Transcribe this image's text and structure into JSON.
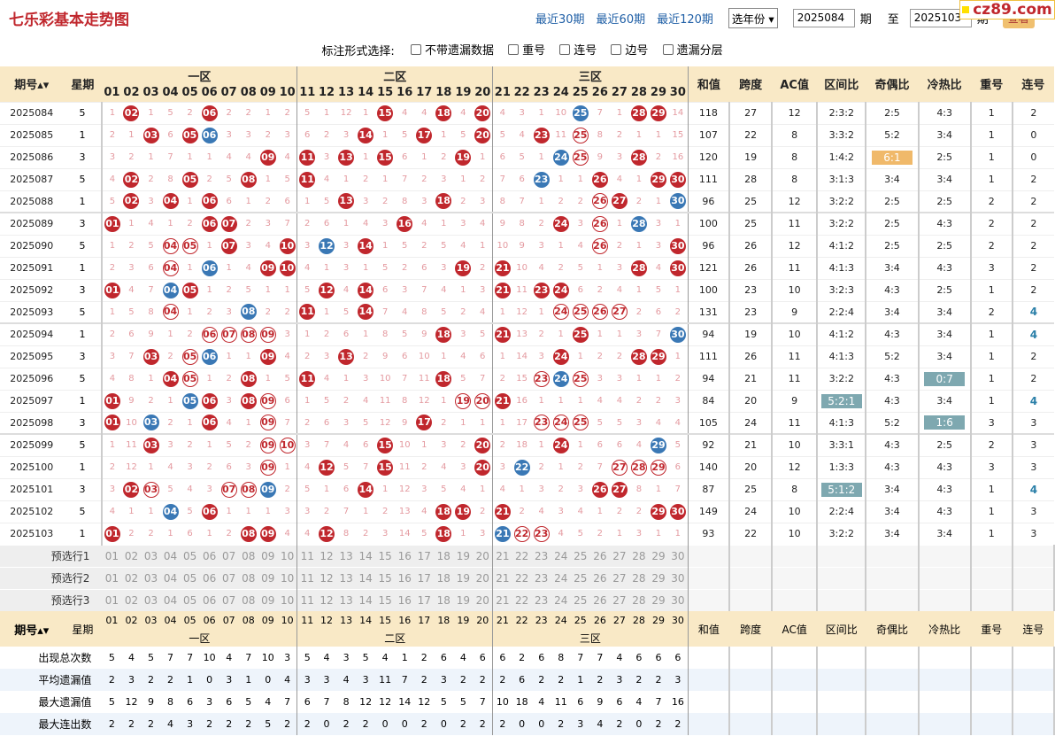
{
  "header": {
    "title": "七乐彩基本走势图",
    "links": [
      "最近30期",
      "最近60期",
      "最近120期"
    ],
    "year_select": "选年份",
    "from_issue": "2025084",
    "unit": "期",
    "to_label": "至",
    "to_issue": "2025103",
    "query": "查看",
    "watermark": "cz89.com"
  },
  "options": {
    "label": "标注形式选择:",
    "items": [
      "不带遗漏数据",
      "重号",
      "连号",
      "边号",
      "遗漏分层"
    ]
  },
  "columns": {
    "issue": "期号",
    "week": "星期",
    "zones": [
      "一区",
      "二区",
      "三区"
    ],
    "stats": [
      "和值",
      "跨度",
      "AC值",
      "区间比",
      "奇偶比",
      "冷热比",
      "重号",
      "连号"
    ],
    "numbers": [
      "01",
      "02",
      "03",
      "04",
      "05",
      "06",
      "07",
      "08",
      "09",
      "10",
      "11",
      "12",
      "13",
      "14",
      "15",
      "16",
      "17",
      "18",
      "19",
      "20",
      "21",
      "22",
      "23",
      "24",
      "25",
      "26",
      "27",
      "28",
      "29",
      "30"
    ]
  },
  "rows": [
    {
      "issue": "2025084",
      "week": "5",
      "cells": [
        "1",
        "02",
        "1",
        "5",
        "2",
        "06",
        "2",
        "2",
        "1",
        "2",
        "5",
        "1",
        "12",
        "1",
        "15",
        "4",
        "4",
        "18",
        "4",
        "20",
        "4",
        "3",
        "1",
        "10",
        "25",
        "7",
        "1",
        "28",
        "29",
        "14"
      ],
      "sum": "118",
      "span": "27",
      "ac": "12",
      "zone": "2:3:2",
      "oe": "2:5",
      "ch": "4:3",
      "rep": "1",
      "con": "2"
    },
    {
      "issue": "2025085",
      "week": "1",
      "cells": [
        "2",
        "1",
        "03",
        "6",
        "05",
        "06",
        "3",
        "3",
        "2",
        "3",
        "6",
        "2",
        "3",
        "14",
        "1",
        "5",
        "17",
        "1",
        "5",
        "20",
        "5",
        "4",
        "23",
        "11",
        "25",
        "8",
        "2",
        "1",
        "1",
        "15"
      ],
      "sum": "107",
      "span": "22",
      "ac": "8",
      "zone": "3:3:2",
      "oe": "5:2",
      "ch": "3:4",
      "rep": "1",
      "con": "0"
    },
    {
      "issue": "2025086",
      "week": "3",
      "cells": [
        "3",
        "2",
        "1",
        "7",
        "1",
        "1",
        "4",
        "4",
        "09",
        "4",
        "11",
        "3",
        "13",
        "1",
        "15",
        "6",
        "1",
        "2",
        "19",
        "1",
        "6",
        "5",
        "1",
        "24",
        "25",
        "9",
        "3",
        "28",
        "2",
        "16"
      ],
      "sum": "120",
      "span": "19",
      "ac": "8",
      "zone": "1:4:2",
      "oe": "6:1",
      "ch": "2:5",
      "rep": "1",
      "con": "0"
    },
    {
      "issue": "2025087",
      "week": "5",
      "cells": [
        "4",
        "02",
        "2",
        "8",
        "05",
        "2",
        "5",
        "08",
        "1",
        "5",
        "11",
        "4",
        "1",
        "2",
        "1",
        "7",
        "2",
        "3",
        "1",
        "2",
        "7",
        "6",
        "23",
        "1",
        "1",
        "26",
        "4",
        "1",
        "29",
        "30"
      ],
      "sum": "111",
      "span": "28",
      "ac": "8",
      "zone": "3:1:3",
      "oe": "3:4",
      "ch": "3:4",
      "rep": "1",
      "con": "2"
    },
    {
      "issue": "2025088",
      "week": "1",
      "cells": [
        "5",
        "02",
        "3",
        "04",
        "1",
        "06",
        "6",
        "1",
        "2",
        "6",
        "1",
        "5",
        "13",
        "3",
        "2",
        "8",
        "3",
        "18",
        "2",
        "3",
        "8",
        "7",
        "1",
        "2",
        "2",
        "26",
        "27",
        "2",
        "1",
        "30"
      ],
      "sum": "96",
      "span": "25",
      "ac": "12",
      "zone": "3:2:2",
      "oe": "2:5",
      "ch": "2:5",
      "rep": "2",
      "con": "2"
    },
    {
      "issue": "2025089",
      "week": "3",
      "cells": [
        "01",
        "1",
        "4",
        "1",
        "2",
        "06",
        "07",
        "2",
        "3",
        "7",
        "2",
        "6",
        "1",
        "4",
        "3",
        "16",
        "4",
        "1",
        "3",
        "4",
        "9",
        "8",
        "2",
        "24",
        "3",
        "26",
        "1",
        "28",
        "3",
        "1"
      ],
      "sum": "100",
      "span": "25",
      "ac": "11",
      "zone": "3:2:2",
      "oe": "2:5",
      "ch": "4:3",
      "rep": "2",
      "con": "2"
    },
    {
      "issue": "2025090",
      "week": "5",
      "cells": [
        "1",
        "2",
        "5",
        "04",
        "05",
        "1",
        "07",
        "3",
        "4",
        "10",
        "3",
        "12",
        "3",
        "14",
        "1",
        "5",
        "2",
        "5",
        "4",
        "1",
        "10",
        "9",
        "3",
        "1",
        "4",
        "26",
        "2",
        "1",
        "3",
        "30"
      ],
      "sum": "96",
      "span": "26",
      "ac": "12",
      "zone": "4:1:2",
      "oe": "2:5",
      "ch": "2:5",
      "rep": "2",
      "con": "2"
    },
    {
      "issue": "2025091",
      "week": "1",
      "cells": [
        "2",
        "3",
        "6",
        "04",
        "1",
        "06",
        "1",
        "4",
        "09",
        "10",
        "4",
        "1",
        "3",
        "1",
        "5",
        "2",
        "6",
        "3",
        "19",
        "2",
        "21",
        "10",
        "4",
        "2",
        "5",
        "1",
        "3",
        "28",
        "4",
        "30"
      ],
      "sum": "121",
      "span": "26",
      "ac": "11",
      "zone": "4:1:3",
      "oe": "3:4",
      "ch": "4:3",
      "rep": "3",
      "con": "2"
    },
    {
      "issue": "2025092",
      "week": "3",
      "cells": [
        "01",
        "4",
        "7",
        "04",
        "05",
        "1",
        "2",
        "5",
        "1",
        "1",
        "5",
        "12",
        "4",
        "14",
        "6",
        "3",
        "7",
        "4",
        "1",
        "3",
        "21",
        "11",
        "23",
        "24",
        "6",
        "2",
        "4",
        "1",
        "5",
        "1"
      ],
      "sum": "100",
      "span": "23",
      "ac": "10",
      "zone": "3:2:3",
      "oe": "4:3",
      "ch": "2:5",
      "rep": "1",
      "con": "2"
    },
    {
      "issue": "2025093",
      "week": "5",
      "cells": [
        "1",
        "5",
        "8",
        "04",
        "1",
        "2",
        "3",
        "08",
        "2",
        "2",
        "11",
        "1",
        "5",
        "14",
        "7",
        "4",
        "8",
        "5",
        "2",
        "4",
        "1",
        "12",
        "1",
        "24",
        "25",
        "26",
        "27",
        "2",
        "6",
        "2"
      ],
      "sum": "131",
      "span": "23",
      "ac": "9",
      "zone": "2:2:4",
      "oe": "3:4",
      "ch": "3:4",
      "rep": "2",
      "con": "4"
    },
    {
      "issue": "2025094",
      "week": "1",
      "cells": [
        "2",
        "6",
        "9",
        "1",
        "2",
        "06",
        "07",
        "08",
        "09",
        "3",
        "1",
        "2",
        "6",
        "1",
        "8",
        "5",
        "9",
        "18",
        "3",
        "5",
        "21",
        "13",
        "2",
        "1",
        "25",
        "1",
        "1",
        "3",
        "7",
        "30"
      ],
      "sum": "94",
      "span": "19",
      "ac": "10",
      "zone": "4:1:2",
      "oe": "4:3",
      "ch": "3:4",
      "rep": "1",
      "con": "4"
    },
    {
      "issue": "2025095",
      "week": "3",
      "cells": [
        "3",
        "7",
        "03",
        "2",
        "05",
        "06",
        "1",
        "1",
        "09",
        "4",
        "2",
        "3",
        "13",
        "2",
        "9",
        "6",
        "10",
        "1",
        "4",
        "6",
        "1",
        "14",
        "3",
        "24",
        "1",
        "2",
        "2",
        "28",
        "29",
        "1"
      ],
      "sum": "111",
      "span": "26",
      "ac": "11",
      "zone": "4:1:3",
      "oe": "5:2",
      "ch": "3:4",
      "rep": "1",
      "con": "2"
    },
    {
      "issue": "2025096",
      "week": "5",
      "cells": [
        "4",
        "8",
        "1",
        "04",
        "05",
        "1",
        "2",
        "08",
        "1",
        "5",
        "11",
        "4",
        "1",
        "3",
        "10",
        "7",
        "11",
        "18",
        "5",
        "7",
        "2",
        "15",
        "23",
        "24",
        "25",
        "3",
        "3",
        "1",
        "1",
        "2"
      ],
      "sum": "94",
      "span": "21",
      "ac": "11",
      "zone": "3:2:2",
      "oe": "4:3",
      "ch": "0:7",
      "rep": "1",
      "con": "2"
    },
    {
      "issue": "2025097",
      "week": "1",
      "cells": [
        "01",
        "9",
        "2",
        "1",
        "05",
        "06",
        "3",
        "08",
        "09",
        "6",
        "1",
        "5",
        "2",
        "4",
        "11",
        "8",
        "12",
        "1",
        "19",
        "20",
        "21",
        "16",
        "1",
        "1",
        "1",
        "4",
        "4",
        "2",
        "2",
        "3"
      ],
      "sum": "84",
      "span": "20",
      "ac": "9",
      "zone": "5:2:1",
      "oe": "4:3",
      "ch": "3:4",
      "rep": "1",
      "con": "4"
    },
    {
      "issue": "2025098",
      "week": "3",
      "cells": [
        "01",
        "10",
        "03",
        "2",
        "1",
        "06",
        "4",
        "1",
        "09",
        "7",
        "2",
        "6",
        "3",
        "5",
        "12",
        "9",
        "17",
        "2",
        "1",
        "1",
        "1",
        "17",
        "23",
        "24",
        "25",
        "5",
        "5",
        "3",
        "4",
        "4"
      ],
      "sum": "105",
      "span": "24",
      "ac": "11",
      "zone": "4:1:3",
      "oe": "5:2",
      "ch": "1:6",
      "rep": "3",
      "con": "3"
    },
    {
      "issue": "2025099",
      "week": "5",
      "cells": [
        "1",
        "11",
        "03",
        "3",
        "2",
        "1",
        "5",
        "2",
        "09",
        "10",
        "3",
        "7",
        "4",
        "6",
        "15",
        "10",
        "1",
        "3",
        "2",
        "20",
        "2",
        "18",
        "1",
        "24",
        "1",
        "6",
        "6",
        "4",
        "29",
        "5"
      ],
      "sum": "92",
      "span": "21",
      "ac": "10",
      "zone": "3:3:1",
      "oe": "4:3",
      "ch": "2:5",
      "rep": "2",
      "con": "3"
    },
    {
      "issue": "2025100",
      "week": "1",
      "cells": [
        "2",
        "12",
        "1",
        "4",
        "3",
        "2",
        "6",
        "3",
        "09",
        "1",
        "4",
        "12",
        "5",
        "7",
        "15",
        "11",
        "2",
        "4",
        "3",
        "20",
        "3",
        "22",
        "2",
        "1",
        "2",
        "7",
        "27",
        "28",
        "29",
        "6"
      ],
      "sum": "140",
      "span": "20",
      "ac": "12",
      "zone": "1:3:3",
      "oe": "4:3",
      "ch": "4:3",
      "rep": "3",
      "con": "3"
    },
    {
      "issue": "2025101",
      "week": "3",
      "cells": [
        "3",
        "02",
        "03",
        "5",
        "4",
        "3",
        "07",
        "08",
        "09",
        "2",
        "5",
        "1",
        "6",
        "14",
        "1",
        "12",
        "3",
        "5",
        "4",
        "1",
        "4",
        "1",
        "3",
        "2",
        "3",
        "26",
        "27",
        "8",
        "1",
        "7"
      ],
      "sum": "87",
      "span": "25",
      "ac": "8",
      "zone": "5:1:2",
      "oe": "3:4",
      "ch": "4:3",
      "rep": "1",
      "con": "4"
    },
    {
      "issue": "2025102",
      "week": "5",
      "cells": [
        "4",
        "1",
        "1",
        "04",
        "5",
        "06",
        "1",
        "1",
        "1",
        "3",
        "3",
        "2",
        "7",
        "1",
        "2",
        "13",
        "4",
        "18",
        "19",
        "2",
        "21",
        "2",
        "4",
        "3",
        "4",
        "1",
        "2",
        "2",
        "29",
        "30"
      ],
      "sum": "149",
      "span": "24",
      "ac": "10",
      "zone": "2:2:4",
      "oe": "3:4",
      "ch": "4:3",
      "rep": "1",
      "con": "3"
    },
    {
      "issue": "2025103",
      "week": "1",
      "cells": [
        "01",
        "2",
        "2",
        "1",
        "6",
        "1",
        "2",
        "08",
        "09",
        "4",
        "4",
        "12",
        "8",
        "2",
        "3",
        "14",
        "5",
        "18",
        "1",
        "3",
        "21",
        "22",
        "23",
        "4",
        "5",
        "2",
        "1",
        "3",
        "1",
        "1"
      ],
      "sum": "93",
      "span": "22",
      "ac": "10",
      "zone": "3:2:2",
      "oe": "3:4",
      "ch": "3:4",
      "rep": "1",
      "con": "3"
    }
  ],
  "ball_styles": {
    "blue": [
      [
        "2025084",
        "25"
      ],
      [
        "2025085",
        "06"
      ],
      [
        "2025086",
        "24"
      ],
      [
        "2025087",
        "23"
      ],
      [
        "2025088",
        "30"
      ],
      [
        "2025089",
        "28"
      ],
      [
        "2025090",
        "12"
      ],
      [
        "2025091",
        "06"
      ],
      [
        "2025092",
        "04"
      ],
      [
        "2025093",
        "08"
      ],
      [
        "2025094",
        "30"
      ],
      [
        "2025095",
        "06"
      ],
      [
        "2025096",
        "24"
      ],
      [
        "2025097",
        "05"
      ],
      [
        "2025098",
        "03"
      ],
      [
        "2025099",
        "29"
      ],
      [
        "2025100",
        "22"
      ],
      [
        "2025101",
        "09"
      ],
      [
        "2025102",
        "04"
      ],
      [
        "2025103",
        "21"
      ]
    ],
    "ring": [
      [
        "2025085",
        "25"
      ],
      [
        "2025086",
        "25"
      ],
      [
        "2025088",
        "26"
      ],
      [
        "2025089",
        "26"
      ],
      [
        "2025090",
        "04"
      ],
      [
        "2025090",
        "05"
      ],
      [
        "2025090",
        "26"
      ],
      [
        "2025091",
        "04"
      ],
      [
        "2025093",
        "04"
      ],
      [
        "2025093",
        "24"
      ],
      [
        "2025093",
        "25"
      ],
      [
        "2025093",
        "26"
      ],
      [
        "2025093",
        "27"
      ],
      [
        "2025094",
        "06"
      ],
      [
        "2025094",
        "07"
      ],
      [
        "2025094",
        "08"
      ],
      [
        "2025094",
        "09"
      ],
      [
        "2025095",
        "05"
      ],
      [
        "2025096",
        "05"
      ],
      [
        "2025096",
        "23"
      ],
      [
        "2025096",
        "25"
      ],
      [
        "2025097",
        "09"
      ],
      [
        "2025097",
        "19"
      ],
      [
        "2025097",
        "20"
      ],
      [
        "2025098",
        "09"
      ],
      [
        "2025098",
        "23"
      ],
      [
        "2025098",
        "24"
      ],
      [
        "2025098",
        "25"
      ],
      [
        "2025099",
        "09"
      ],
      [
        "2025099",
        "10"
      ],
      [
        "2025100",
        "09"
      ],
      [
        "2025100",
        "27"
      ],
      [
        "2025100",
        "28"
      ],
      [
        "2025100",
        "29"
      ],
      [
        "2025101",
        "07"
      ],
      [
        "2025101",
        "08"
      ],
      [
        "2025101",
        "03"
      ],
      [
        "2025103",
        "22"
      ],
      [
        "2025103",
        "23"
      ]
    ]
  },
  "highlights": [
    {
      "issue": "2025086",
      "field": "oe",
      "color": "#f0b96a"
    },
    {
      "issue": "2025096",
      "field": "ch",
      "color": "#7ea8b0"
    },
    {
      "issue": "2025097",
      "field": "zone",
      "color": "#7ea8b0"
    },
    {
      "issue": "2025098",
      "field": "ch",
      "color": "#7ea8b0"
    },
    {
      "issue": "2025101",
      "field": "zone",
      "color": "#7ea8b0"
    }
  ],
  "preselect": [
    "预选行1",
    "预选行2",
    "预选行3"
  ],
  "summary": [
    {
      "label": "出现总次数",
      "values": [
        "5",
        "4",
        "5",
        "7",
        "7",
        "10",
        "4",
        "7",
        "10",
        "3",
        "5",
        "4",
        "3",
        "5",
        "4",
        "1",
        "2",
        "6",
        "4",
        "6",
        "6",
        "2",
        "6",
        "8",
        "7",
        "7",
        "4",
        "6",
        "6",
        "6"
      ]
    },
    {
      "label": "平均遗漏值",
      "values": [
        "2",
        "3",
        "2",
        "2",
        "1",
        "0",
        "3",
        "1",
        "0",
        "4",
        "3",
        "3",
        "4",
        "3",
        "11",
        "7",
        "2",
        "3",
        "2",
        "2",
        "2",
        "6",
        "2",
        "2",
        "1",
        "2",
        "3",
        "2",
        "2",
        "3"
      ]
    },
    {
      "label": "最大遗漏值",
      "values": [
        "5",
        "12",
        "9",
        "8",
        "6",
        "3",
        "6",
        "5",
        "4",
        "7",
        "6",
        "7",
        "8",
        "12",
        "12",
        "14",
        "12",
        "5",
        "5",
        "7",
        "10",
        "18",
        "4",
        "11",
        "6",
        "9",
        "6",
        "4",
        "7",
        "16"
      ]
    },
    {
      "label": "最大连出数",
      "values": [
        "2",
        "2",
        "2",
        "4",
        "3",
        "2",
        "2",
        "2",
        "5",
        "2",
        "2",
        "0",
        "2",
        "2",
        "0",
        "0",
        "2",
        "0",
        "2",
        "2",
        "2",
        "0",
        "0",
        "2",
        "3",
        "4",
        "2",
        "0",
        "2",
        "2"
      ]
    }
  ]
}
